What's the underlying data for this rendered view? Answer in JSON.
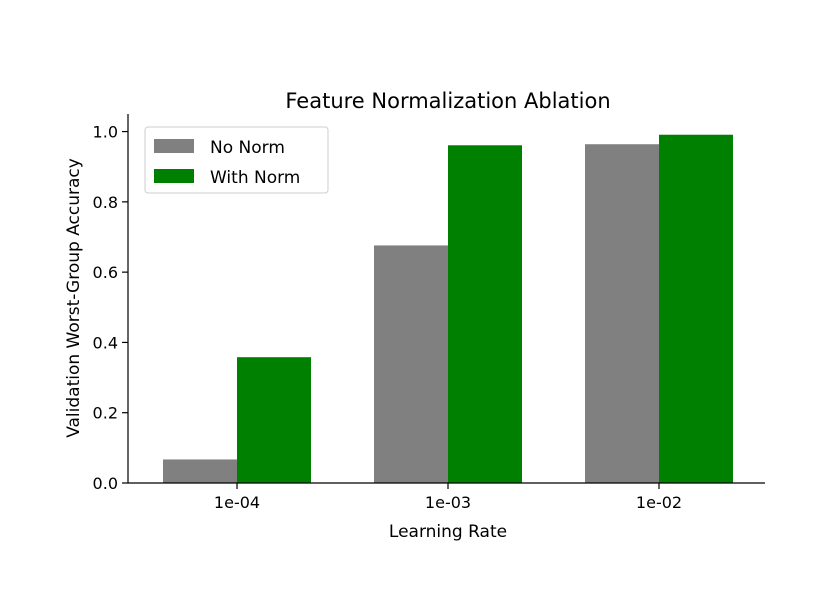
{
  "chart_data": {
    "type": "bar",
    "title": "Feature Normalization Ablation",
    "xlabel": "Learning Rate",
    "ylabel": "Validation Worst-Group Accuracy",
    "categories": [
      "1e-04",
      "1e-03",
      "1e-02"
    ],
    "series": [
      {
        "name": "No Norm",
        "color": "#808080",
        "values": [
          0.067,
          0.676,
          0.964
        ]
      },
      {
        "name": "With Norm",
        "color": "#008000",
        "values": [
          0.358,
          0.961,
          0.991
        ]
      }
    ],
    "ylim": [
      0,
      1.05
    ],
    "yticks": [
      0.0,
      0.2,
      0.4,
      0.6,
      0.8,
      1.0
    ],
    "ytick_labels": [
      "0.0",
      "0.2",
      "0.4",
      "0.6",
      "0.8",
      "1.0"
    ],
    "grid": false,
    "legend_position": "top-left"
  }
}
